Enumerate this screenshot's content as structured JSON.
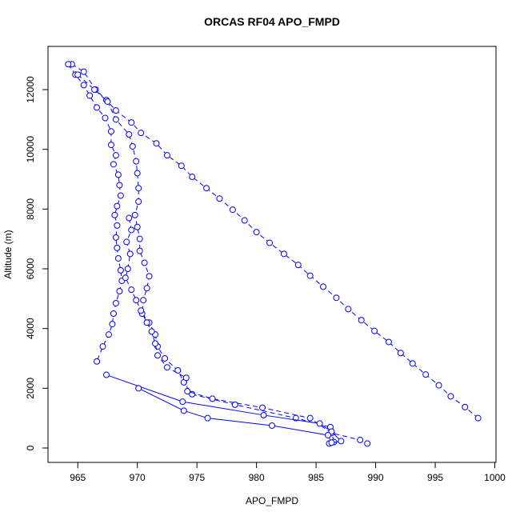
{
  "chart_data": {
    "type": "line",
    "title": "ORCAS RF04 APO_FMPD",
    "x_label": "APO_FMPD",
    "y_label": "Altitude (m)",
    "xlim": [
      962.5,
      1000.1
    ],
    "ylim": [
      -482,
      13447
    ],
    "xticks": [
      965,
      970,
      975,
      980,
      985,
      990,
      995,
      1000
    ],
    "yticks": [
      0,
      2000,
      4000,
      6000,
      8000,
      10000,
      12000
    ],
    "series": [
      {
        "color": "#0000ff",
        "dashed": true,
        "x": [
          964.5,
          965.5,
          966.5,
          967.4,
          968.2,
          969.5,
          970.3,
          971.6,
          972.5,
          973.7,
          974.6,
          975.8,
          976.9,
          978,
          979,
          980,
          981.1,
          982.3,
          983.5,
          984.5,
          985.6,
          986.7,
          987.7,
          988.8,
          989.9,
          991.1,
          992.1,
          993.1,
          994.2,
          995.3,
          996.3,
          997.5,
          998.6
        ],
        "values": [
          12850,
          12600,
          12000,
          11650,
          11300,
          10900,
          10550,
          10200,
          9800,
          9450,
          9080,
          8700,
          8350,
          7980,
          7620,
          7230,
          6870,
          6500,
          6130,
          5770,
          5400,
          5030,
          4650,
          4280,
          3920,
          3550,
          3180,
          2830,
          2460,
          2100,
          1730,
          1370,
          1000
        ]
      },
      {
        "color": "#0000ff",
        "dashed": true,
        "x": [
          964.2,
          964.8,
          965.5,
          966,
          966.6,
          967.3,
          967.8,
          967.8,
          968.2,
          968,
          968.4,
          968.5,
          968.6,
          968.3,
          968.1,
          968.3,
          968.2,
          968.3,
          968.4,
          968.6,
          968.7,
          968.5,
          968.2,
          968,
          967.9,
          967.6,
          967.1,
          966.6
        ],
        "values": [
          12850,
          12500,
          12150,
          11800,
          11400,
          11050,
          10600,
          10150,
          9800,
          9500,
          9150,
          8800,
          8450,
          8100,
          7800,
          7450,
          7050,
          6700,
          6350,
          5950,
          5600,
          5250,
          4850,
          4500,
          4150,
          3800,
          3400,
          2900
        ]
      },
      {
        "color": "#0000ff",
        "dashed": true,
        "x": [
          965,
          966.4,
          967.5,
          968.2,
          969.3,
          969.6,
          969.9,
          970,
          970.1,
          970.1,
          969.8,
          970,
          970.2,
          970.2,
          970.6,
          971,
          970.8,
          970.5,
          970.4,
          971,
          971.5,
          971.7,
          972.3,
          973.4,
          973.9,
          974.6,
          978.2,
          983.3,
          986.2,
          986.5
        ],
        "values": [
          12500,
          12000,
          11600,
          11000,
          10500,
          10100,
          9600,
          9200,
          8700,
          8250,
          7800,
          7400,
          7000,
          6600,
          6200,
          5750,
          5350,
          4950,
          4500,
          4200,
          3800,
          3400,
          3000,
          2600,
          2200,
          1800,
          1450,
          1000,
          700,
          200
        ]
      },
      {
        "color": "#0000ff",
        "dashed": true,
        "x": [
          969.3,
          969.5,
          969.1,
          969.4,
          969.2,
          969,
          969.5,
          969.9,
          970.3,
          970.8,
          971.2,
          971.5,
          971.7,
          972.5,
          974.1,
          974.2,
          976.3,
          980.5,
          984.5,
          986.3,
          988.7,
          989.3
        ],
        "values": [
          7700,
          7300,
          6900,
          6500,
          6000,
          5700,
          5300,
          4950,
          4600,
          4200,
          3900,
          3500,
          3100,
          2700,
          2350,
          1900,
          1650,
          1350,
          1000,
          500,
          270,
          150
        ]
      },
      {
        "color": "#0000ff",
        "dashed": false,
        "x": [
          967.4,
          973.8,
          980.6,
          985.3,
          986.3,
          987.1,
          986.1
        ],
        "values": [
          2450,
          1550,
          1100,
          820,
          550,
          230,
          150
        ]
      },
      {
        "color": "#0000ff",
        "dashed": false,
        "x": [
          970.1,
          973.9,
          975.9,
          981.3,
          986,
          986.3
        ],
        "values": [
          2000,
          1250,
          1000,
          750,
          430,
          180
        ]
      }
    ]
  }
}
